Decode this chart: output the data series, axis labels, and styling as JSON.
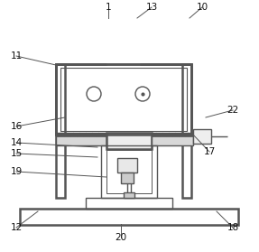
{
  "bg_color": "#ffffff",
  "line_color": "#555555",
  "lw": 1.0,
  "tlw": 1.8,
  "annotations": [
    [
      "1",
      120,
      8,
      120,
      20
    ],
    [
      "10",
      224,
      8,
      210,
      20
    ],
    [
      "11",
      18,
      62,
      62,
      72
    ],
    [
      "13",
      168,
      8,
      152,
      20
    ],
    [
      "12",
      18,
      252,
      42,
      234
    ],
    [
      "14",
      18,
      158,
      108,
      163
    ],
    [
      "15",
      18,
      170,
      108,
      174
    ],
    [
      "16",
      18,
      140,
      72,
      130
    ],
    [
      "17",
      232,
      168,
      213,
      148
    ],
    [
      "18",
      258,
      252,
      240,
      234
    ],
    [
      "19",
      18,
      190,
      118,
      196
    ],
    [
      "20",
      134,
      263,
      134,
      248
    ],
    [
      "22",
      258,
      122,
      228,
      130
    ]
  ]
}
